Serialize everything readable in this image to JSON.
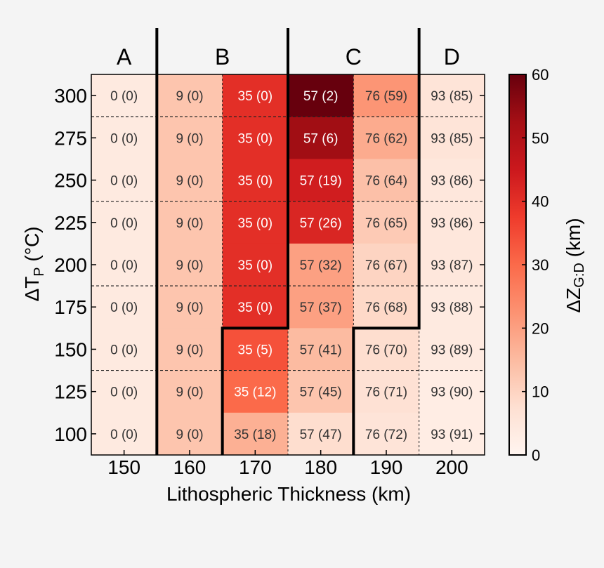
{
  "chart_data": {
    "type": "heatmap",
    "x": [
      150,
      160,
      170,
      180,
      190,
      200
    ],
    "y": [
      300,
      275,
      250,
      225,
      200,
      175,
      150,
      125,
      100
    ],
    "xlabel": "Lithospheric Thickness (km)",
    "ylabel": "ΔT",
    "ylabel_sub": "P",
    "ylabel_unit": " (°C)",
    "colorbar_label": "ΔZ",
    "colorbar_sub": "G:D",
    "colorbar_unit": " (km)",
    "colorbar_range": [
      0,
      60
    ],
    "colorbar_ticks": [
      "0",
      "10",
      "20",
      "30",
      "40",
      "50",
      "60"
    ],
    "colormap": "Reds",
    "regions": [
      "A",
      "B",
      "C",
      "D"
    ],
    "cell_values": [
      [
        0,
        0,
        0,
        0,
        0,
        0,
        0,
        0,
        0
      ],
      [
        0,
        0,
        0,
        0,
        0,
        0,
        0,
        0,
        0
      ],
      [
        0,
        0,
        0,
        0,
        0,
        0,
        5,
        12,
        18
      ],
      [
        2,
        6,
        19,
        26,
        32,
        37,
        41,
        45,
        47
      ],
      [
        59,
        62,
        64,
        65,
        67,
        68,
        70,
        71,
        72
      ],
      [
        85,
        85,
        86,
        86,
        87,
        88,
        89,
        90,
        91
      ]
    ],
    "column_values": [
      0,
      9,
      35,
      57,
      76,
      93
    ],
    "label_format": "{col} ({val})",
    "display_scale": {
      "note_free_series": [
        [
          4,
          4,
          4,
          4,
          4,
          4,
          4,
          4,
          4
        ],
        [
          13,
          13,
          13,
          13,
          13,
          13,
          13,
          13,
          13
        ],
        [
          40,
          40,
          40,
          40,
          40,
          40,
          34,
          30,
          17
        ],
        [
          60,
          53,
          44,
          42,
          20,
          20,
          15,
          13,
          8
        ],
        [
          22,
          18,
          14,
          12,
          10,
          9,
          8,
          7,
          6
        ],
        [
          6,
          6,
          5,
          5,
          5,
          4,
          4,
          3,
          3
        ]
      ]
    }
  }
}
